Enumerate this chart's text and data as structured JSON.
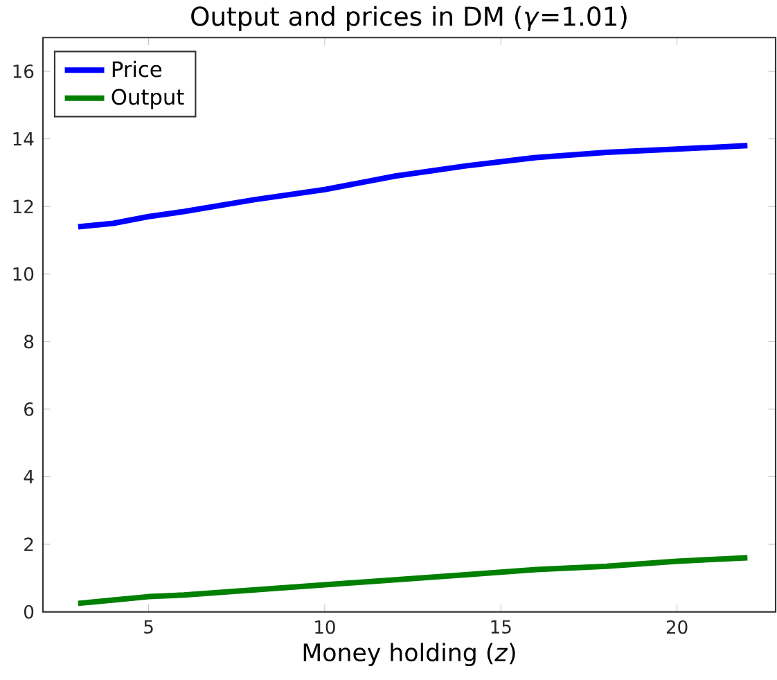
{
  "chart_data": {
    "type": "line",
    "title": "Output and prices in DM (*γ*=1.01)",
    "xlabel": "Money holding (*z*)",
    "x": [
      3,
      4,
      5,
      6,
      8,
      10,
      12,
      14,
      16,
      18,
      20,
      22
    ],
    "series": [
      {
        "name": "Price",
        "color": "#0000ff",
        "values": [
          11.4,
          11.5,
          11.7,
          11.85,
          12.2,
          12.5,
          12.9,
          13.2,
          13.45,
          13.6,
          13.7,
          13.8
        ]
      },
      {
        "name": "Output",
        "color": "#008000",
        "values": [
          0.25,
          0.35,
          0.45,
          0.5,
          0.65,
          0.8,
          0.95,
          1.1,
          1.25,
          1.35,
          1.5,
          1.6
        ]
      }
    ],
    "xlim": [
      2,
      22.8
    ],
    "ylim": [
      0,
      17
    ],
    "xticks": [
      5,
      10,
      15,
      20
    ],
    "yticks": [
      0,
      2,
      4,
      6,
      8,
      10,
      12,
      14,
      16
    ],
    "legend": "top left",
    "line_style": "solid"
  }
}
